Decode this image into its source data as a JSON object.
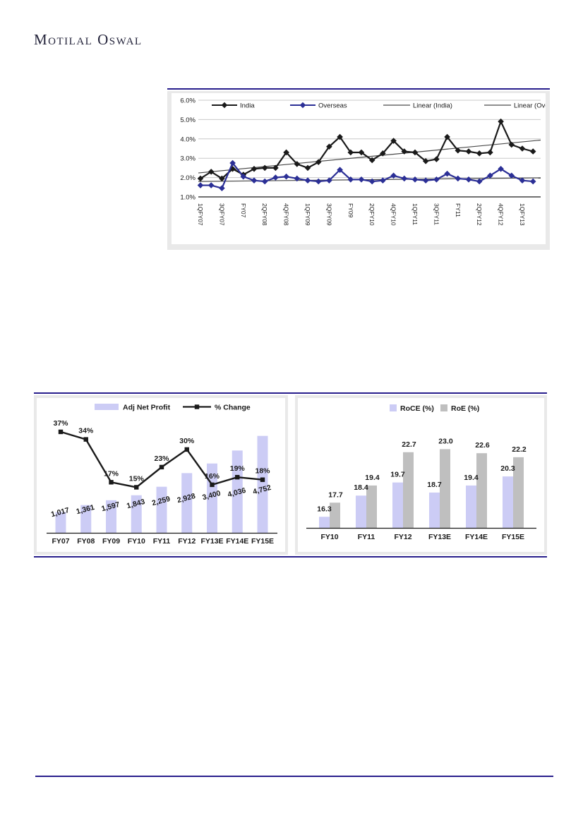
{
  "brand": {
    "logo": "Motilal Oswal"
  },
  "theme": {
    "accent_navy": "#281E8C",
    "india_black": "#1a1a1a",
    "overseas_navy": "#2B2F96",
    "trend_gray": "#4a4a4a",
    "lavender": "#CCCCF5",
    "bar_gray": "#BFBFBF",
    "grid_gray": "#C9C9C9",
    "frame_gray": "#E9E9E9",
    "text_dark": "#1a1a1a"
  },
  "chart_data": [
    {
      "id": "india-overseas-quarterly-trend",
      "type": "line",
      "legend": [
        "India",
        "Overseas",
        "Linear (India)",
        "Linear (Overseas)"
      ],
      "ylim": [
        1.0,
        6.0
      ],
      "y_tick_labels": [
        "6.0%",
        "5.0%",
        "4.0%",
        "3.0%",
        "2.0%",
        "1.0%"
      ],
      "y_tick_values": [
        6,
        5,
        4,
        3,
        2,
        1
      ],
      "x_labels": [
        "1QFY07",
        "",
        "3QFY07",
        "",
        "FY07",
        "",
        "2QFY08",
        "",
        "4QFY08",
        "",
        "1QFY09",
        "",
        "3QFY09",
        "",
        "FY09",
        "",
        "2QFY10",
        "",
        "4QFY10",
        "",
        "1QFY11",
        "",
        "3QFY11",
        "",
        "FY11",
        "",
        "2QFY12",
        "",
        "4QFY12",
        "",
        "1QFY13",
        ""
      ],
      "series": [
        {
          "name": "India",
          "marker": "diamond",
          "values": [
            1.95,
            2.3,
            1.95,
            2.45,
            2.15,
            2.45,
            2.5,
            2.5,
            3.3,
            2.7,
            2.5,
            2.8,
            3.6,
            4.1,
            3.3,
            3.3,
            2.9,
            3.25,
            3.9,
            3.35,
            3.3,
            2.85,
            2.95,
            4.1,
            3.4,
            3.35,
            3.25,
            3.3,
            4.9,
            3.7,
            3.5,
            3.35
          ]
        },
        {
          "name": "Overseas",
          "marker": "diamond",
          "values": [
            1.6,
            1.6,
            1.45,
            2.75,
            2.05,
            1.85,
            1.8,
            2.0,
            2.05,
            1.95,
            1.85,
            1.8,
            1.85,
            2.4,
            1.9,
            1.9,
            1.8,
            1.85,
            2.1,
            1.95,
            1.9,
            1.85,
            1.9,
            2.2,
            1.95,
            1.9,
            1.8,
            2.1,
            2.45,
            2.1,
            1.85,
            1.8
          ]
        },
        {
          "name": "Linear (India)",
          "trend": [
            2.25,
            3.9
          ]
        },
        {
          "name": "Linear (Overseas)",
          "trend": [
            1.8,
            1.98
          ]
        }
      ]
    },
    {
      "id": "adj-net-profit-growth",
      "type": "bar+line",
      "legend": [
        "Adj Net Profit",
        "% Change"
      ],
      "categories": [
        "FY07",
        "FY08",
        "FY09",
        "FY10",
        "FY11",
        "FY12",
        "FY13E",
        "FY14E",
        "FY15E"
      ],
      "bars": {
        "name": "Adj Net Profit",
        "values": [
          1017,
          1361,
          1597,
          1843,
          2259,
          2928,
          3400,
          4036,
          4752
        ],
        "labels": [
          "1,017",
          "1,361",
          "1,597",
          "1,843",
          "2,259",
          "2,928",
          "3,400",
          "4,036",
          "4,752"
        ]
      },
      "line": {
        "name": "% Change",
        "values": [
          37,
          34,
          17,
          15,
          23,
          30,
          16,
          19,
          18
        ],
        "labels": [
          "37%",
          "34%",
          "17%",
          "15%",
          "23%",
          "30%",
          "16%",
          "19%",
          "18%"
        ]
      }
    },
    {
      "id": "roce-roe",
      "type": "bar",
      "legend": [
        "RoCE (%)",
        "RoE (%)"
      ],
      "categories": [
        "FY10",
        "FY11",
        "FY12",
        "FY13E",
        "FY14E",
        "FY15E"
      ],
      "series": [
        {
          "name": "RoCE (%)",
          "values": [
            16.3,
            18.4,
            19.7,
            18.7,
            19.4,
            20.3
          ],
          "labels": [
            "16.3",
            "18.4",
            "19.7",
            "18.7",
            "19.4",
            "20.3"
          ]
        },
        {
          "name": "RoE (%)",
          "values": [
            17.7,
            19.4,
            22.7,
            23.0,
            22.6,
            22.2
          ],
          "labels": [
            "17.7",
            "19.4",
            "22.7",
            "23.0",
            "22.6",
            "22.2"
          ]
        }
      ]
    }
  ]
}
